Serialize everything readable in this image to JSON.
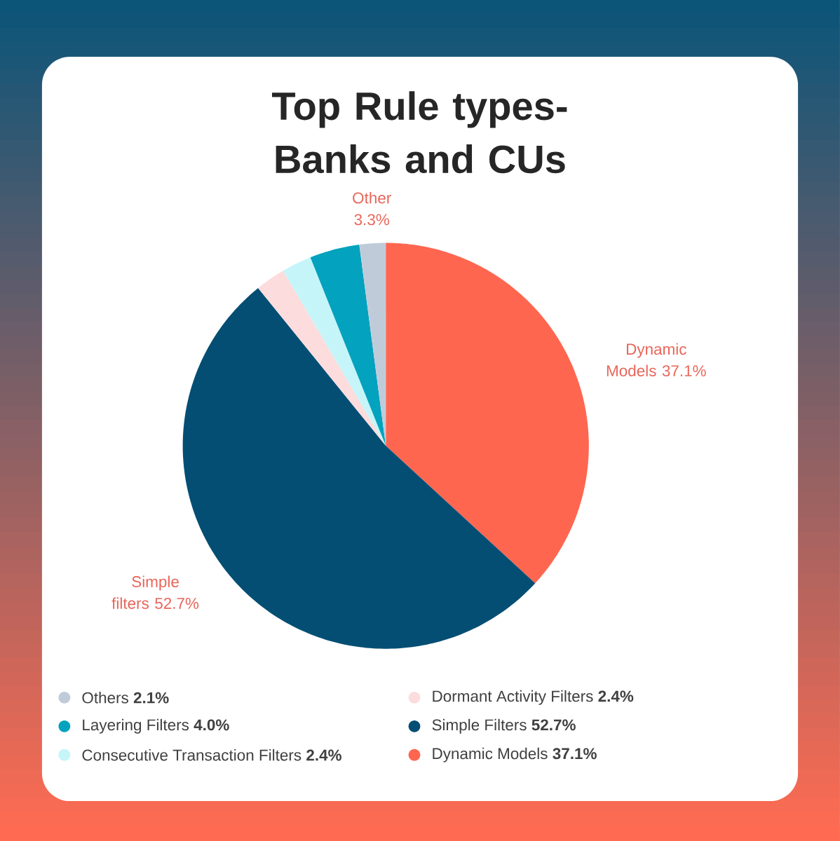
{
  "chart_data": {
    "type": "pie",
    "title": "Top Rule types- Banks and CUs",
    "categories": [
      "Dynamic Models **37.1%**",
      "Simple Filters **52.7%**",
      "Dormant Activity Filters **2.4%**",
      "Consecutive Transaction Filters **2.4%**",
      "Layering Filters **4.0%**",
      "Others  **2.1%**"
    ],
    "values": [
      37.1,
      52.7,
      2.4,
      2.4,
      4.0,
      2.1
    ],
    "colors": [
      "#ff6650",
      "#044e74",
      "#fcdcdc",
      "#c5f5f9",
      "#03a2be",
      "#c0cbd9"
    ],
    "value_labels": [
      "Dynamic Models 37.1%",
      "Simple filters 52.7%",
      null,
      null,
      null,
      "Other 3.3%"
    ],
    "legend": "bottom"
  }
}
